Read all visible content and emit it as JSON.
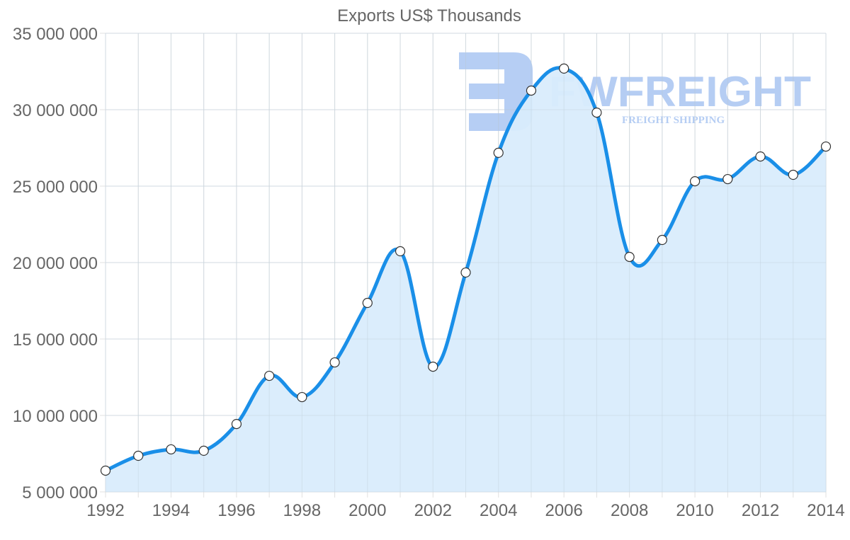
{
  "chart_data": {
    "type": "area",
    "title": "Exports US$ Thousands",
    "xlabel": "",
    "ylabel": "",
    "x": [
      1992,
      1993,
      1994,
      1995,
      1996,
      1997,
      1998,
      1999,
      2000,
      2001,
      2002,
      2003,
      2004,
      2005,
      2006,
      2007,
      2008,
      2009,
      2010,
      2011,
      2012,
      2013,
      2014
    ],
    "series": [
      {
        "name": "Exports US$ Thousands",
        "values": [
          6390000,
          7360000,
          7780000,
          7690000,
          9440000,
          12590000,
          11200000,
          13470000,
          17360000,
          20740000,
          13190000,
          19350000,
          27180000,
          31250000,
          32690000,
          29810000,
          20370000,
          21480000,
          25320000,
          25460000,
          26940000,
          25740000,
          27590000
        ]
      }
    ],
    "ylim": [
      5000000,
      35000000
    ],
    "xlim": [
      1992,
      2014
    ],
    "y_ticks": [
      5000000,
      10000000,
      15000000,
      20000000,
      25000000,
      30000000,
      35000000
    ],
    "y_tick_labels": [
      "5 000 000",
      "10 000 000",
      "15 000 000",
      "20 000 000",
      "25 000 000",
      "30 000 000",
      "35 000 000"
    ],
    "x_tick_labels": [
      "1992",
      "1994",
      "1996",
      "1998",
      "2000",
      "2002",
      "2004",
      "2006",
      "2008",
      "2010",
      "2012",
      "2014"
    ],
    "grid": true,
    "legend": "none",
    "colors": {
      "line": "#1a8fe8",
      "fill": "#d9ecfc",
      "point_fill": "#ffffff",
      "point_stroke": "#333333",
      "grid": "#e0e0e0",
      "text": "#666666"
    }
  },
  "watermark": {
    "brand": "FWFREIGHT",
    "tagline": "FREIGHT SHIPPING",
    "color": "#8fb3ee"
  }
}
